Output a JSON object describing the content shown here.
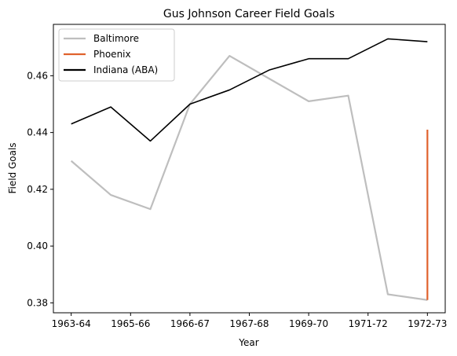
{
  "chart_data": {
    "type": "line",
    "title": "Gus Johnson  Career Field Goals",
    "xlabel": "Year",
    "ylabel": "Field Goals",
    "x_tick_labels": [
      "1963-64",
      "1965-66",
      "1966-67",
      "1967-68",
      "1969-70",
      "1971-72",
      "1972-73"
    ],
    "y_ticks": [
      "0.38",
      "0.40",
      "0.42",
      "0.44",
      "0.46"
    ],
    "ylim": [
      0.3765,
      0.4781
    ],
    "xlim": [
      -0.45,
      9.45
    ],
    "grid": false,
    "legend_position": "top-left",
    "series": [
      {
        "name": "Baltimore",
        "color": "#bebebe",
        "x": [
          0,
          1,
          2,
          3,
          4,
          5,
          6,
          7,
          8,
          9
        ],
        "values": [
          0.43,
          0.418,
          0.413,
          0.45,
          0.467,
          0.459,
          0.451,
          0.453,
          0.383,
          0.381
        ]
      },
      {
        "name": "Phoenix",
        "color": "#e0622d",
        "x": [
          9,
          9
        ],
        "values": [
          0.381,
          0.441
        ]
      },
      {
        "name": "Indiana (ABA)",
        "color": "#000000",
        "x": [
          0,
          1,
          2,
          3,
          4,
          5,
          6,
          7,
          8,
          9
        ],
        "values": [
          0.443,
          0.449,
          0.437,
          0.45,
          0.455,
          0.462,
          0.466,
          0.466,
          0.473,
          0.472
        ]
      }
    ]
  }
}
